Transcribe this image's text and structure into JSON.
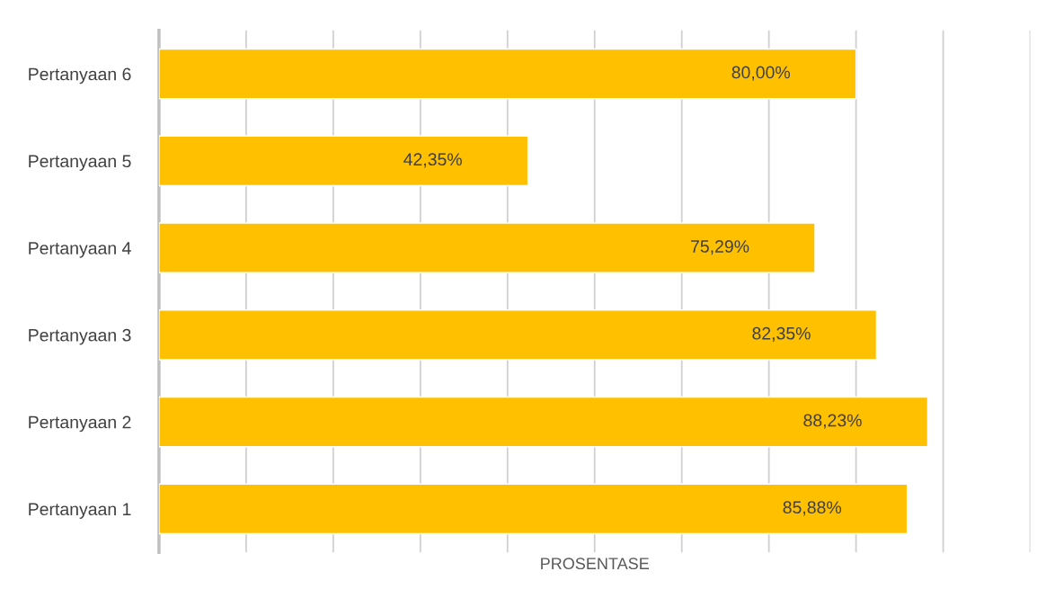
{
  "chart_data": {
    "type": "bar",
    "orientation": "horizontal",
    "xlabel": "PROSENTASE",
    "categories": [
      "Pertanyaan 6",
      "Pertanyaan 5",
      "Pertanyaan 4",
      "Pertanyaan 3",
      "Pertanyaan 2",
      "Pertanyaan 1"
    ],
    "values": [
      80.0,
      42.35,
      75.29,
      82.35,
      88.23,
      85.88
    ],
    "value_labels": [
      "80,00%",
      "42,35%",
      "75,29%",
      "82,35%",
      "88,23%",
      "85,88%"
    ],
    "color": "#ffc000",
    "xlim": [
      0,
      100
    ],
    "xticks": [
      {
        "value": 0,
        "label": null
      },
      {
        "value": 10,
        "label": null
      },
      {
        "value": 20,
        "label": null
      },
      {
        "value": 30,
        "label": null
      },
      {
        "value": 40,
        "label": null
      },
      {
        "value": 50,
        "label": null
      },
      {
        "value": 60,
        "label": null
      },
      {
        "value": 70,
        "label": null
      },
      {
        "value": 80,
        "label": null
      },
      {
        "value": 90,
        "label": null
      },
      {
        "value": 100,
        "label": null
      }
    ],
    "grid": "x",
    "tick_labels": "y"
  }
}
